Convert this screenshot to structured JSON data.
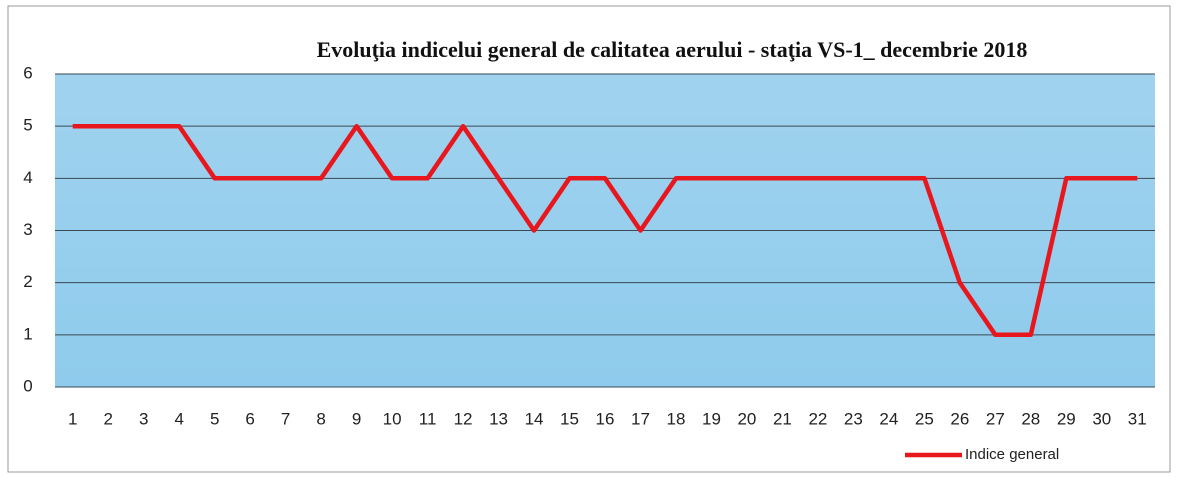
{
  "chart_data": {
    "type": "line",
    "title": "Evoluţia indicelui general de calitatea aerului - staţia VS-1_ decembrie 2018",
    "categories": [
      "1",
      "2",
      "3",
      "4",
      "5",
      "6",
      "7",
      "8",
      "9",
      "10",
      "11",
      "12",
      "13",
      "14",
      "15",
      "16",
      "17",
      "18",
      "19",
      "20",
      "21",
      "22",
      "23",
      "24",
      "25",
      "26",
      "27",
      "28",
      "29",
      "30",
      "31"
    ],
    "series": [
      {
        "name": "Indice general",
        "color": "#e8171d",
        "values": [
          5,
          5,
          5,
          5,
          4,
          4,
          4,
          4,
          5,
          4,
          4,
          5,
          4,
          3,
          4,
          4,
          3,
          4,
          4,
          4,
          4,
          4,
          4,
          4,
          4,
          2,
          1,
          1,
          4,
          4,
          4
        ]
      }
    ],
    "ylim": [
      0,
      6
    ],
    "yticks": [
      0,
      1,
      2,
      3,
      4,
      5,
      6
    ],
    "grid": true,
    "legend": "bottom-right",
    "plot_background": "#8fcbec"
  }
}
